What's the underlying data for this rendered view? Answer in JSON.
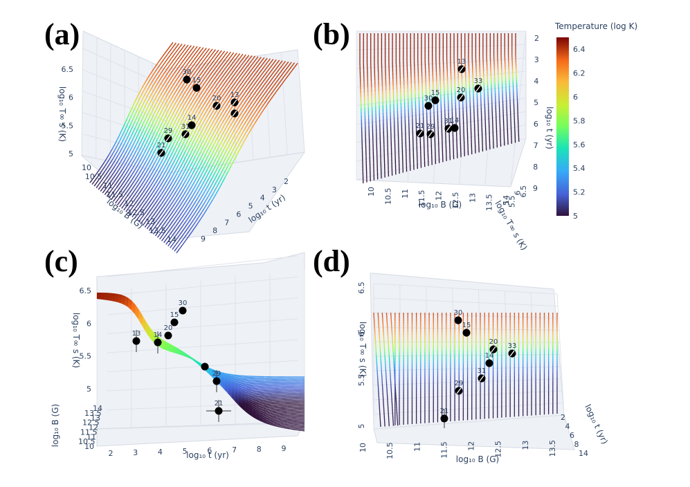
{
  "chart_data": {
    "type": "surface3d",
    "title": "",
    "colorbar": {
      "title": "Temperature (log K)",
      "range": [
        5,
        6.5
      ],
      "ticks": [
        "6.4",
        "6.2",
        "6",
        "5.8",
        "5.6",
        "5.4",
        "5.2",
        "5"
      ]
    },
    "panels": [
      {
        "id": "a",
        "label": "(a)",
        "view": "oblique",
        "zlabel": "log₁₀ T∞ s (K)",
        "xlabel": "log₁₀ B (G)",
        "ylabel": "log₁₀ t (yr)",
        "zticks": [
          "6.5",
          "6",
          "5.5",
          "5"
        ],
        "xticks": [
          "10",
          "10.5",
          "11",
          "11.5",
          "12",
          "12.5",
          "13",
          "13.5",
          "14"
        ],
        "yticks": [
          "2",
          "3",
          "4",
          "5",
          "6",
          "7",
          "8",
          "9"
        ],
        "points": [
          "30",
          "15",
          "20",
          "13",
          "14",
          "31",
          "29",
          "21"
        ]
      },
      {
        "id": "b",
        "label": "(b)",
        "view": "top",
        "xlabel": "log₁₀ B (G)",
        "ylabel": "log₁₀ t (yr)",
        "zlabel": "log₁₀ T∞ s (K)",
        "xticks": [
          "10",
          "10.5",
          "11",
          "11.5",
          "12",
          "12.5",
          "13",
          "13.5",
          "14"
        ],
        "yticks": [
          "2",
          "3",
          "4",
          "5",
          "6",
          "7",
          "8",
          "9"
        ],
        "zticks": [
          "5",
          "5.5",
          "6",
          "6.5"
        ],
        "points": [
          "13",
          "33",
          "15",
          "30",
          "20",
          "21",
          "29",
          "31",
          "14"
        ]
      },
      {
        "id": "c",
        "label": "(c)",
        "view": "side-t",
        "zlabel": "log₁₀ T∞ s (K)",
        "xlabel": "log₁₀ t (yr)",
        "ylabel": "log₁₀ B (G)",
        "zticks": [
          "6.5",
          "6",
          "5.5",
          "5"
        ],
        "xticks": [
          "2",
          "3",
          "4",
          "5",
          "6",
          "7",
          "8",
          "9"
        ],
        "yticks": [
          "14",
          "13.5",
          "13",
          "12.5",
          "12",
          "11.5",
          "11",
          "10.5",
          "10"
        ],
        "points": [
          "30",
          "15",
          "20",
          "13",
          "14",
          "29",
          "21"
        ]
      },
      {
        "id": "d",
        "label": "(d)",
        "view": "side-b",
        "zlabel": "log₁₀ T∞ s (K)",
        "xlabel": "log₁₀ B (G)",
        "ylabel": "log₁₀ t (yr)",
        "zticks": [
          "6.5",
          "6",
          "5.5",
          "5"
        ],
        "xticks": [
          "10",
          "10.5",
          "11",
          "11.5",
          "12",
          "12.5",
          "13",
          "13.5"
        ],
        "yticks": [
          "2",
          "4",
          "6",
          "8",
          "14"
        ],
        "points": [
          "30",
          "15",
          "20",
          "33",
          "14",
          "31",
          "29",
          "21"
        ]
      }
    ]
  }
}
